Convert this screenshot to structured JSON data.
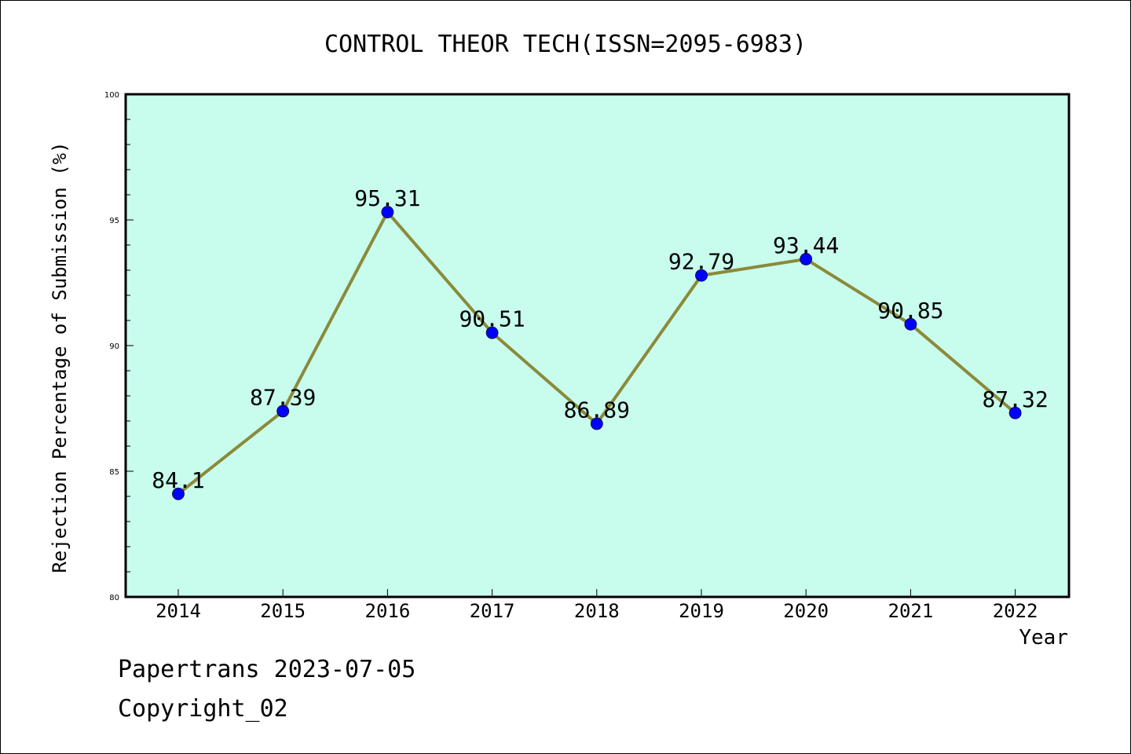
{
  "chart_data": {
    "type": "line",
    "title": "CONTROL THEOR TECH(ISSN=2095-6983)",
    "xlabel": "Year",
    "ylabel": "Rejection Percentage of Submission (%)",
    "categories": [
      "2014",
      "2015",
      "2016",
      "2017",
      "2018",
      "2019",
      "2020",
      "2021",
      "2022"
    ],
    "values": [
      84.1,
      87.39,
      95.31,
      90.51,
      86.89,
      92.79,
      93.44,
      90.85,
      87.32
    ],
    "data_labels": [
      "84.1",
      "87.39",
      "95.31",
      "90.51",
      "86.89",
      "92.79",
      "93.44",
      "90.85",
      "87.32"
    ],
    "ylim": [
      80,
      100
    ],
    "yticks": [
      "80",
      "85",
      "90",
      "95",
      "100"
    ],
    "grid": false,
    "colors": {
      "plot_background": "#c8fced",
      "line": "#8b8a3a",
      "marker": "#0000ff"
    }
  },
  "footer": {
    "line1": "Papertrans 2023-07-05",
    "line2": "Copyright_02"
  }
}
